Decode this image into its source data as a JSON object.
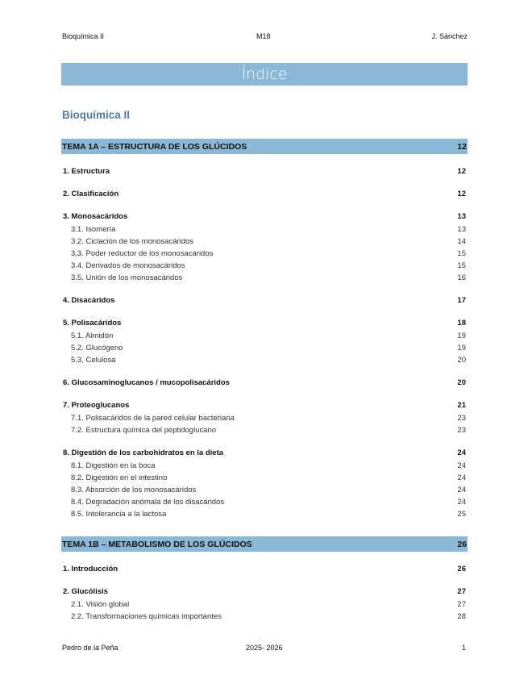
{
  "header": {
    "left": "Bioquímica II",
    "center": "M18",
    "right": "J. Sánchez"
  },
  "title": "Índice",
  "heading": "Bioquímica II",
  "colors": {
    "bar": "#8ab8d6",
    "heading": "#4f7da0"
  },
  "toc": [
    {
      "title": "TEMA 1A – ESTRUCTURA DE LOS GLÚCIDOS",
      "page": "12",
      "items": [
        {
          "label": "1. Estructura",
          "page": "12",
          "subs": []
        },
        {
          "label": "2. Clasificación",
          "page": "12",
          "subs": []
        },
        {
          "label": "3. Monosacáridos",
          "page": "13",
          "subs": [
            {
              "label": "3.1. Isomería",
              "page": "13"
            },
            {
              "label": "3.2. Ciclación de los monosacáridos",
              "page": "14"
            },
            {
              "label": "3.3. Poder reductor de los monosacáridos",
              "page": "15"
            },
            {
              "label": "3.4. Derivados de monosacáridos",
              "page": "15"
            },
            {
              "label": "3.5. Unión de los monosacáridos",
              "page": "16"
            }
          ]
        },
        {
          "label": "4. Disacáridos",
          "page": "17",
          "subs": []
        },
        {
          "label": "5. Polisacáridos",
          "page": "18",
          "subs": [
            {
              "label": "5.1. Almidón",
              "page": "19"
            },
            {
              "label": "5.2. Glucógeno",
              "page": "19"
            },
            {
              "label": "5.3. Celulosa",
              "page": "20"
            }
          ]
        },
        {
          "label": "6. Glucosaminoglucanos / mucopolisacáridos",
          "page": "20",
          "subs": []
        },
        {
          "label": "7. Proteoglucanos",
          "page": "21",
          "subs": [
            {
              "label": "7.1. Polisacáridos de la pared celular bacteriana",
              "page": "23"
            },
            {
              "label": "7.2. Estructura química del peptidoglucano",
              "page": "23"
            }
          ]
        },
        {
          "label": "8. Digestión de los carbohidratos en la dieta",
          "page": "24",
          "subs": [
            {
              "label": "8.1. Digestión en la boca",
              "page": "24"
            },
            {
              "label": "8.2. Digestión en el intestino",
              "page": "24"
            },
            {
              "label": "8.3. Absorción de los monosacáridos",
              "page": "24"
            },
            {
              "label": "8.4. Degradación anómala de los disacáridos",
              "page": "24"
            },
            {
              "label": "8.5. Intolerancia a la lactosa",
              "page": "25"
            }
          ]
        }
      ]
    },
    {
      "title": "TEMA 1B – METABOLISMO DE LOS GLÚCIDOS",
      "page": "26",
      "items": [
        {
          "label": "1. Introducción",
          "page": "26",
          "subs": []
        },
        {
          "label": "2. Glucólisis",
          "page": "27",
          "subs": [
            {
              "label": "2.1. Visión global",
              "page": "27"
            },
            {
              "label": "2.2. Transformaciones químicas importantes",
              "page": "28"
            }
          ]
        }
      ]
    }
  ],
  "footer": {
    "left": "Pedro de la Peña",
    "center": "2025- 2026",
    "right": "1"
  }
}
